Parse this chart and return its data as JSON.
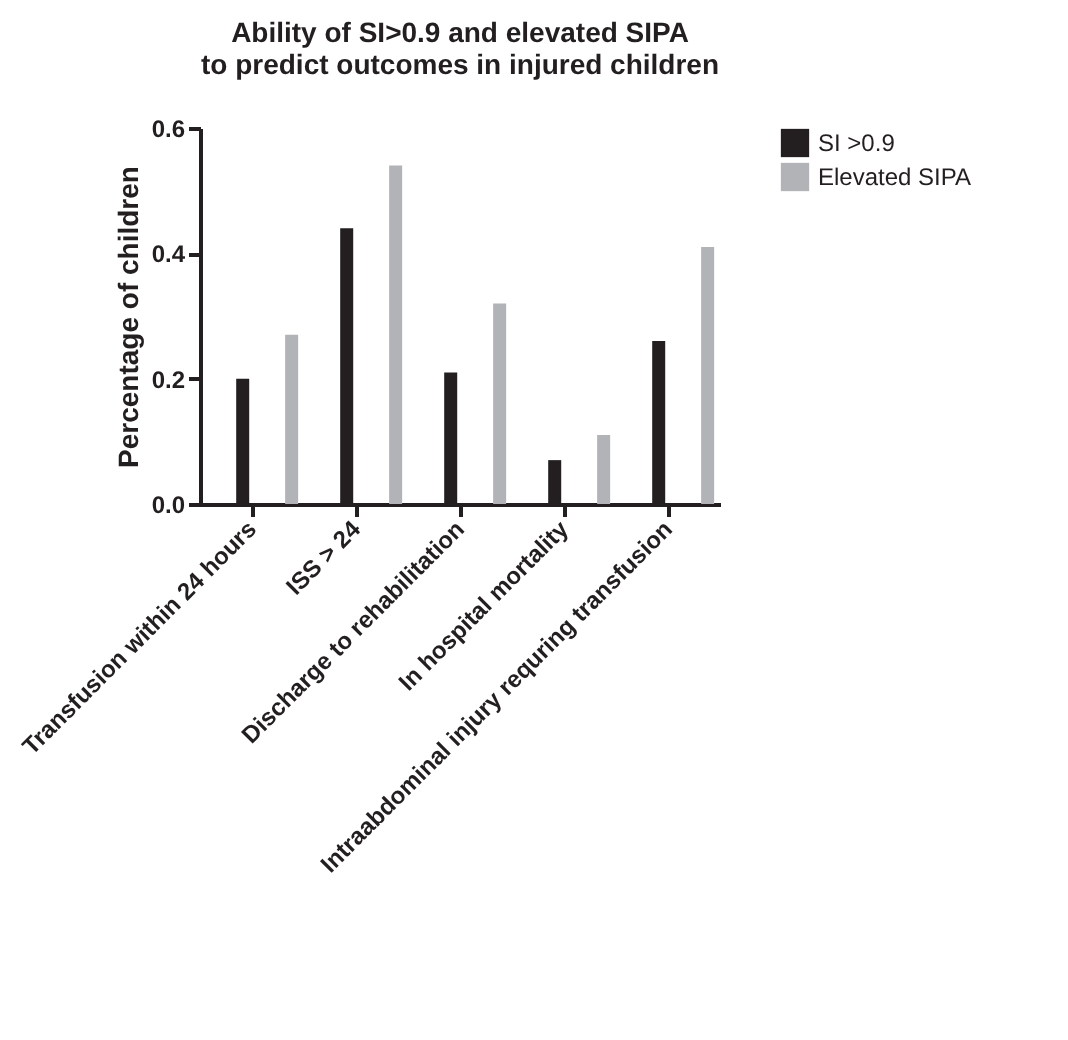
{
  "chart_data": {
    "type": "bar",
    "title": "Ability of SI>0.9 and elevated SIPA to predict outcomes in injured children",
    "ylabel": "Percentage of children",
    "categories": [
      "Transfusion within 24 hours",
      "ISS > 24",
      "Discharge to rehabilitation",
      "In hospital mortality",
      "Intraabdominal injury requring transfusion"
    ],
    "series": [
      {
        "name": "SI >0.9",
        "color": "#231f20",
        "values": [
          0.2,
          0.44,
          0.21,
          0.07,
          0.26
        ]
      },
      {
        "name": "Elevated SIPA",
        "color": "#b1b3b6",
        "values": [
          0.27,
          0.54,
          0.32,
          0.11,
          0.41
        ]
      }
    ],
    "ylim": [
      0,
      0.6
    ],
    "yticks": [
      {
        "value": 0,
        "label": "0.0"
      },
      {
        "value": 0.2,
        "label": "0.2"
      },
      {
        "value": 0.4,
        "label": "0.4"
      },
      {
        "value": 0.6,
        "label": "0.6"
      }
    ],
    "grid": false,
    "legend": "top right"
  }
}
